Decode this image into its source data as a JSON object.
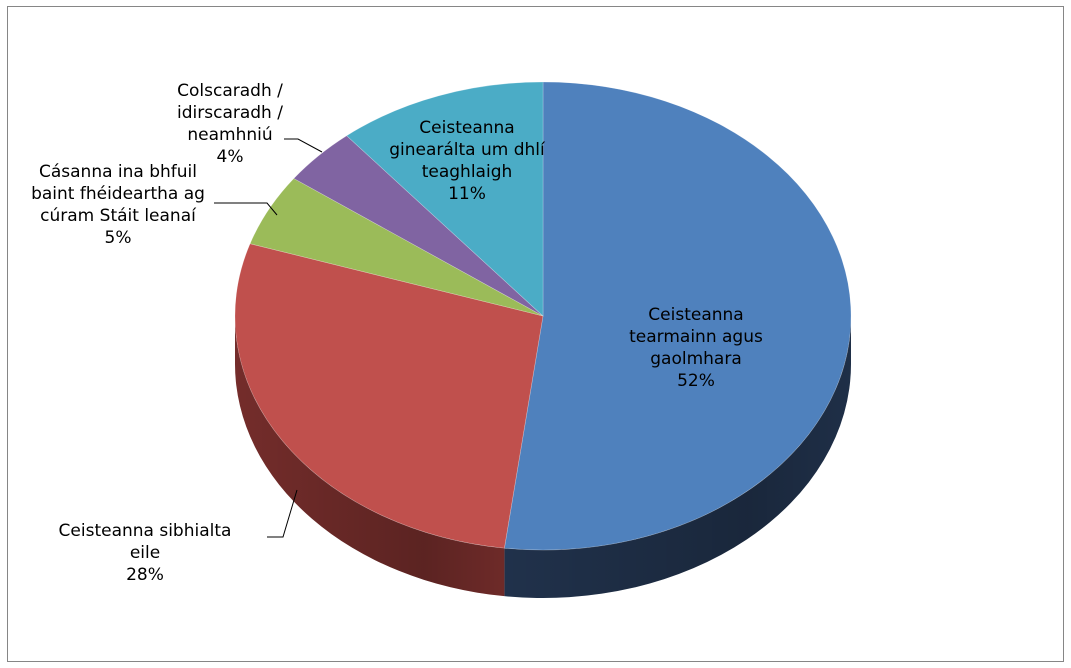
{
  "chart_data": {
    "type": "pie",
    "style": "3d",
    "slices": [
      {
        "label": [
          "Ceisteanna",
          "tearmainn agus",
          "gaolmhara"
        ],
        "value": 52,
        "display": "52%",
        "color": "#4F81BD",
        "side_color": "#22344F",
        "label_position": "inside"
      },
      {
        "label": [
          "Ceisteanna sibhialta",
          "eile"
        ],
        "value": 28,
        "display": "28%",
        "color": "#C0504D",
        "side_color": "#7A2F2D",
        "label_position": "outside"
      },
      {
        "label": [
          "Cásanna ina bhfuil",
          "baint fhéideartha ag",
          "cúram Stáit leanaí"
        ],
        "value": 5,
        "display": "5%",
        "color": "#9BBB59",
        "side_color": "#5E7436",
        "label_position": "outside"
      },
      {
        "label": [
          "Colscaradh /",
          "idirscaradh /",
          "neamhniú"
        ],
        "value": 4,
        "display": "4%",
        "color": "#8064A2",
        "side_color": "#4D3C62",
        "label_position": "outside"
      },
      {
        "label": [
          "Ceisteanna",
          "ginearálta um dhlí",
          "teaghlaigh"
        ],
        "value": 11,
        "display": "11%",
        "color": "#4BACC6",
        "side_color": "#2A6877",
        "label_position": "inside"
      }
    ],
    "legend": "none"
  }
}
